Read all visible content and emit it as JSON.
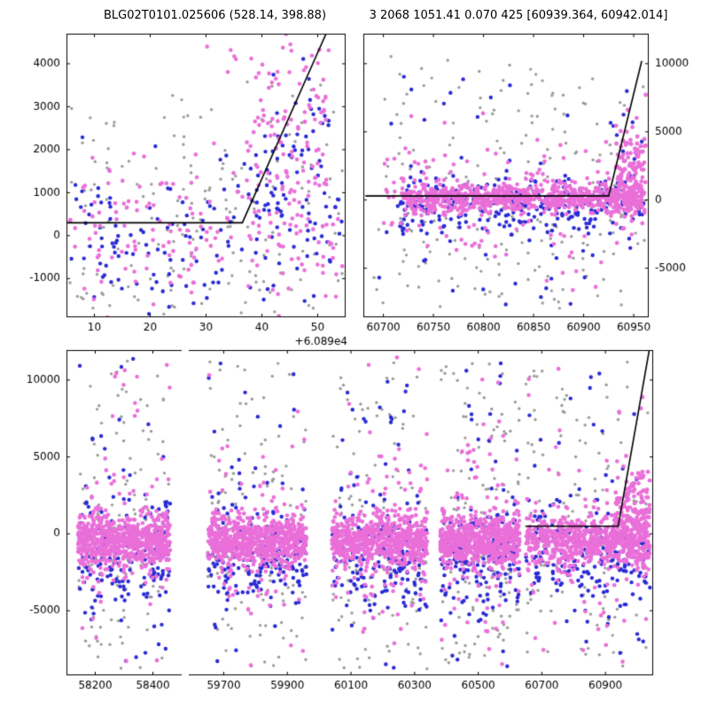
{
  "title": {
    "left": "BLG02T0101.025606 (528.14, 398.88)",
    "right": "3 2068 1051.41 0.070 425 [60939.364, 60942.014]"
  },
  "colors": {
    "magenta": "#ea6fd9",
    "blue": "#2b2bd5",
    "gray": "#9b9b9b",
    "line": "#000000",
    "axis": "#000000",
    "background": "#ffffff",
    "tick_text": "#000000"
  },
  "chart_data": {
    "type": "scatter",
    "legend": "none",
    "grid": false,
    "panels": [
      {
        "id": "top-left",
        "x": {
          "min": 5,
          "max": 55,
          "ticks": [
            10,
            20,
            30,
            40,
            50
          ],
          "offset_label": "+6.089e4",
          "show_tick_labels": true
        },
        "y": {
          "min": -1900,
          "max": 4700,
          "ticks": [
            -1000,
            0,
            1000,
            2000,
            3000,
            4000
          ],
          "labels_side": "left"
        },
        "spines": [
          "left",
          "right",
          "top",
          "bottom"
        ],
        "model_line": [
          [
            5,
            300
          ],
          [
            36.5,
            300
          ],
          [
            51.5,
            4700
          ]
        ],
        "series": [
          {
            "color": "gray",
            "n": 110,
            "x": [
              5.5,
              54.5
            ],
            "dist": "uniform",
            "y0": -1800,
            "y1": 3600,
            "r": 1.7,
            "seed": 11
          },
          {
            "color": "gray",
            "n": 70,
            "x": [
              5.5,
              54.5
            ],
            "dist": "gauss",
            "mu": -200,
            "sigma": 1200,
            "r": 1.7,
            "seed": 12
          },
          {
            "color": "blue",
            "n": 150,
            "x": [
              5.5,
              54.5
            ],
            "dist": "gauss",
            "mu": -150,
            "sigma": 950,
            "r": 2.2,
            "seed": 13
          },
          {
            "color": "blue",
            "n": 55,
            "x": [
              38,
              52
            ],
            "dist": "gauss",
            "mu": 1900,
            "sigma": 800,
            "r": 2.2,
            "seed": 14
          },
          {
            "color": "magenta",
            "n": 175,
            "x": [
              5.5,
              54.5
            ],
            "dist": "gauss",
            "mu": 100,
            "sigma": 850,
            "r": 2.3,
            "seed": 15
          },
          {
            "color": "magenta",
            "n": 95,
            "x": [
              37,
              52
            ],
            "dist": "gauss",
            "mu": 2500,
            "sigma": 900,
            "r": 2.3,
            "seed": 16
          },
          {
            "color": "magenta",
            "n": 10,
            "x": [
              28,
              53
            ],
            "dist": "uniform",
            "y0": 3600,
            "y1": 4650,
            "r": 2.3,
            "seed": 17
          }
        ]
      },
      {
        "id": "top-right",
        "x": {
          "min": 60680,
          "max": 60965,
          "ticks": [
            60700,
            60750,
            60800,
            60850,
            60900,
            60950
          ],
          "show_tick_labels": true
        },
        "y": {
          "min": -8600,
          "max": 12200,
          "ticks": [
            -5000,
            0,
            5000,
            10000
          ],
          "labels_side": "right"
        },
        "spines": [
          "left",
          "right",
          "top",
          "bottom"
        ],
        "model_line": [
          [
            60682,
            300
          ],
          [
            60925,
            300
          ],
          [
            60958,
            10200
          ]
        ],
        "series": [
          {
            "color": "gray",
            "n": 150,
            "x": [
              60690,
              60962
            ],
            "dist": "uniform",
            "y0": -8000,
            "y1": 10800,
            "r": 1.7,
            "seed": 21
          },
          {
            "color": "gray",
            "n": 80,
            "x": [
              60715,
              60962
            ],
            "dist": "gauss",
            "mu": -1000,
            "sigma": 2600,
            "r": 1.7,
            "seed": 22
          },
          {
            "color": "blue",
            "n": 270,
            "x": [
              60715,
              60960
            ],
            "dist": "gauss",
            "mu": -500,
            "sigma": 1100,
            "r": 2.2,
            "seed": 23
          },
          {
            "color": "blue",
            "n": 60,
            "x": [
              60690,
              60960
            ],
            "dist": "uniform",
            "y0": -8200,
            "y1": 9500,
            "r": 2.2,
            "seed": 24
          },
          {
            "color": "magenta",
            "n": 800,
            "x": [
              60718,
              60958
            ],
            "dist": "gauss",
            "mu": 150,
            "sigma": 550,
            "r": 2.3,
            "seed": 25
          },
          {
            "color": "magenta",
            "n": 130,
            "x": [
              60700,
              60960
            ],
            "dist": "gauss",
            "mu": 0,
            "sigma": 2800,
            "r": 2.3,
            "seed": 26
          },
          {
            "color": "magenta",
            "n": 140,
            "x": [
              60932,
              60962
            ],
            "dist": "gauss",
            "mu": 1800,
            "sigma": 1800,
            "r": 2.4,
            "seed": 27
          }
        ]
      },
      {
        "id": "bottom-left",
        "x": {
          "min": 58100,
          "max": 58500,
          "ticks": [
            58200,
            58400
          ],
          "show_tick_labels": true
        },
        "y": {
          "min": -9200,
          "max": 11950,
          "ticks": [
            -5000,
            0,
            5000,
            10000
          ],
          "labels_side": "left"
        },
        "spines": [
          "left",
          "top",
          "bottom"
        ],
        "model_line": null,
        "clusters": [
          {
            "x": [
              58140,
              58460
            ],
            "seed": 31
          }
        ],
        "mix": [
          {
            "color": "gray",
            "n": 85,
            "dist": "uniform",
            "y0": -8800,
            "y1": 11300,
            "r": 1.7
          },
          {
            "color": "gray",
            "n": 45,
            "dist": "gauss",
            "mu": -800,
            "sigma": 2800,
            "r": 1.7
          },
          {
            "color": "blue",
            "n": 165,
            "dist": "gauss",
            "mu": -1400,
            "sigma": 1700,
            "r": 2.2
          },
          {
            "color": "blue",
            "n": 35,
            "dist": "uniform",
            "y0": -8800,
            "y1": 11400,
            "r": 2.2
          },
          {
            "color": "magenta",
            "n": 650,
            "dist": "gauss",
            "mu": -450,
            "sigma": 800,
            "r": 2.3
          },
          {
            "color": "magenta",
            "n": 90,
            "dist": "gauss",
            "mu": -500,
            "sigma": 2700,
            "r": 2.3
          },
          {
            "color": "magenta",
            "n": 25,
            "dist": "uniform",
            "y0": -8600,
            "y1": 11500,
            "r": 2.3
          }
        ],
        "series": []
      },
      {
        "id": "bottom-right",
        "x": {
          "min": 59590,
          "max": 61050,
          "ticks": [
            59700,
            59900,
            60100,
            60300,
            60500,
            60700,
            60900
          ],
          "show_tick_labels": true
        },
        "y": {
          "min": -9200,
          "max": 11950,
          "ticks": [
            -5000,
            0,
            5000,
            10000
          ],
          "labels_side": "none"
        },
        "spines": [
          "right",
          "top",
          "bottom"
        ],
        "model_line": [
          [
            60648,
            500
          ],
          [
            60940,
            500
          ],
          [
            61045,
            12800
          ]
        ],
        "clusters": [
          {
            "x": [
              59650,
              59960
            ],
            "seed": 41
          },
          {
            "x": [
              60040,
              60340
            ],
            "seed": 51
          },
          {
            "x": [
              60380,
              60630
            ],
            "seed": 61
          },
          {
            "x": [
              60650,
              61040
            ],
            "seed": 71
          }
        ],
        "mix": [
          {
            "color": "gray",
            "n": 85,
            "dist": "uniform",
            "y0": -8800,
            "y1": 11300,
            "r": 1.7
          },
          {
            "color": "gray",
            "n": 45,
            "dist": "gauss",
            "mu": -800,
            "sigma": 2800,
            "r": 1.7
          },
          {
            "color": "blue",
            "n": 165,
            "dist": "gauss",
            "mu": -1400,
            "sigma": 1700,
            "r": 2.2
          },
          {
            "color": "blue",
            "n": 35,
            "dist": "uniform",
            "y0": -8800,
            "y1": 11400,
            "r": 2.2
          },
          {
            "color": "magenta",
            "n": 650,
            "dist": "gauss",
            "mu": -450,
            "sigma": 800,
            "r": 2.3
          },
          {
            "color": "magenta",
            "n": 90,
            "dist": "gauss",
            "mu": -500,
            "sigma": 2700,
            "r": 2.3
          },
          {
            "color": "magenta",
            "n": 25,
            "dist": "uniform",
            "y0": -8600,
            "y1": 11500,
            "r": 2.3
          }
        ],
        "series": [
          {
            "color": "magenta",
            "n": 150,
            "x": [
              60930,
              61040
            ],
            "dist": "gauss",
            "mu": 1200,
            "sigma": 1600,
            "r": 2.4,
            "seed": 99
          }
        ]
      }
    ]
  }
}
